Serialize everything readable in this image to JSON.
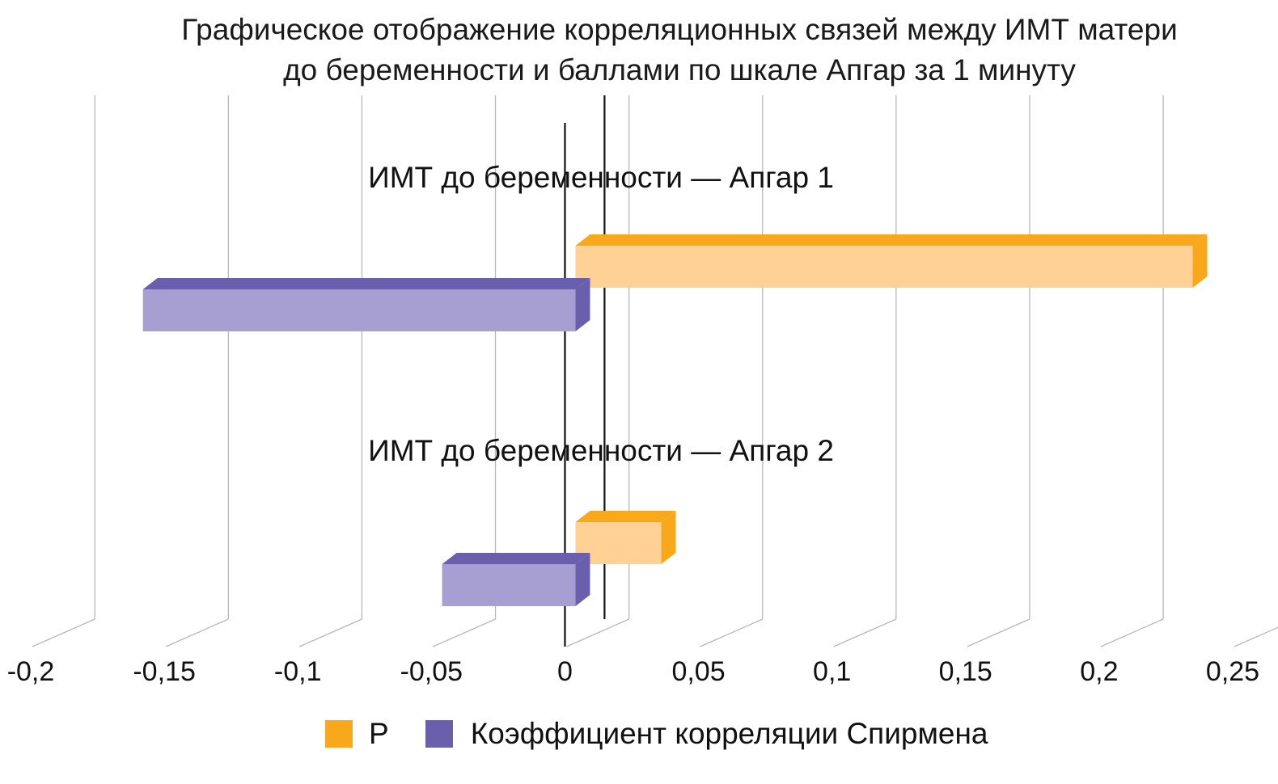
{
  "chart_data": {
    "type": "bar",
    "orientation": "horizontal",
    "title_lines": [
      "Графическое отображение корреляционных связей между ИМТ матери",
      "до беременности и баллами по шкале Апгар за 1 минуту"
    ],
    "categories": [
      "ИМТ до беременности — Апгар 1",
      "ИМТ до беременности — Апгар 2"
    ],
    "series": [
      {
        "name": "P",
        "values": [
          0.235,
          0.036
        ],
        "color_front": "#FFD194",
        "color_top": "#F7A81B",
        "color_side": "#F7A81B",
        "legend_color": "#F7A81B"
      },
      {
        "name": "Коэффициент корреляции Спирмена",
        "values": [
          -0.158,
          -0.046
        ],
        "color_front": "#A79FD1",
        "color_top": "#6A5FAD",
        "color_side": "#6A5FAD",
        "legend_color": "#6A5FAD"
      }
    ],
    "xlim": [
      -0.2,
      0.25
    ],
    "ticks": [
      -0.2,
      -0.15,
      -0.1,
      -0.05,
      0,
      0.05,
      0.1,
      0.15,
      0.2,
      0.25
    ],
    "tick_labels": [
      "-0,2",
      "-0,15",
      "-0,1",
      "-0,05",
      "0",
      "0,05",
      "0,1",
      "0,15",
      "0,2",
      "0,25"
    ],
    "reference_lines": [
      0,
      0.014
    ],
    "grid": true,
    "legend_position": "bottom"
  }
}
